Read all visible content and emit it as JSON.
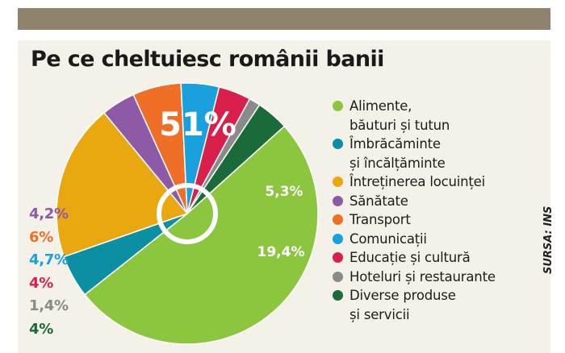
{
  "title": "Pe ce cheltuiesc românii banii",
  "source": "SURSA: INS",
  "chart_data": {
    "type": "pie",
    "title": "Pe ce cheltuiesc românii banii",
    "categories": [
      "Alimente, băuturi și tutun",
      "Îmbrăcăminte și încălțăminte",
      "Întreținerea locuinței",
      "Sănătate",
      "Transport",
      "Comunicații",
      "Educație și cultură",
      "Hoteluri și restaurante",
      "Diverse produse și servicii"
    ],
    "values": [
      51,
      5.3,
      19.4,
      4.2,
      6,
      4.7,
      4,
      1.4,
      4
    ],
    "labels": [
      "51%",
      "5,3%",
      "19,4%",
      "4,2%",
      "6%",
      "4,7%",
      "4%",
      "1,4%",
      "4%"
    ],
    "colors": [
      "#8cc63f",
      "#0d8fa3",
      "#e9a80f",
      "#8e5aa6",
      "#ef6f26",
      "#1aa0dc",
      "#d91f4b",
      "#8a8a8a",
      "#1b6b3a"
    ],
    "legend_placement": "right",
    "legend": [
      {
        "lines": [
          "Alimente,",
          "băuturi și tutun"
        ]
      },
      {
        "lines": [
          "Îmbrăcăminte",
          "și încălțăminte"
        ]
      },
      {
        "lines": [
          "Întreținerea locuinței"
        ]
      },
      {
        "lines": [
          "Sănătate"
        ]
      },
      {
        "lines": [
          "Transport"
        ]
      },
      {
        "lines": [
          "Comunicații"
        ]
      },
      {
        "lines": [
          "Educație și cultură"
        ]
      },
      {
        "lines": [
          "Hoteluri și restaurante"
        ]
      },
      {
        "lines": [
          "Diverse produse",
          "și servicii"
        ]
      }
    ],
    "inside_labels": [
      0,
      1,
      2
    ],
    "outside_labels": [
      3,
      4,
      5,
      6,
      7,
      8
    ]
  }
}
